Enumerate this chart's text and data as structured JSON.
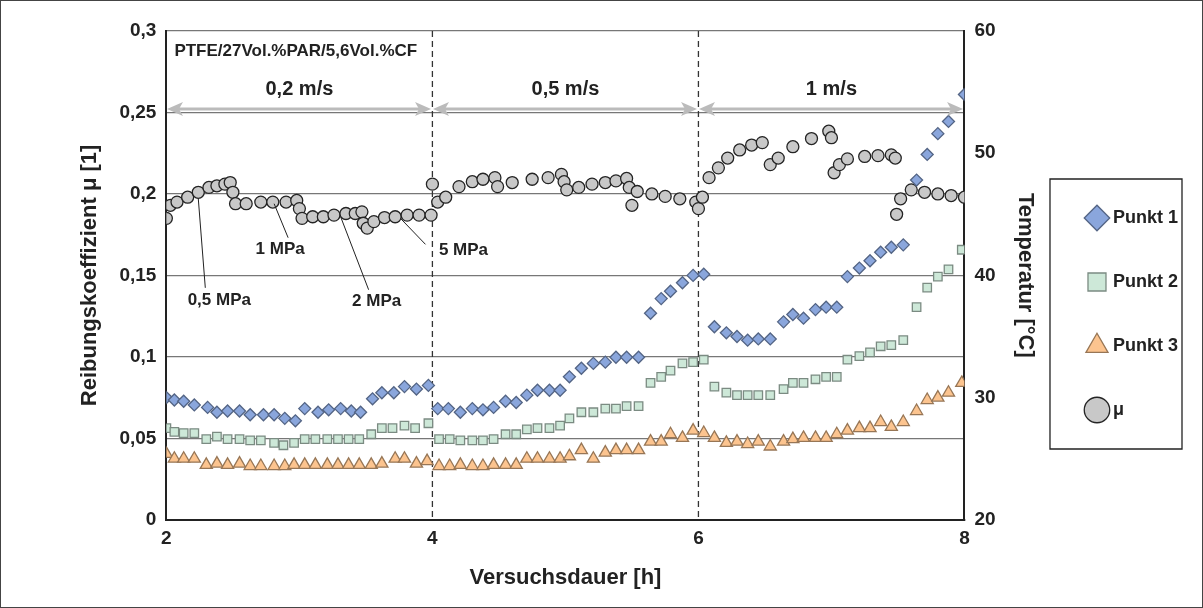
{
  "chart_data": {
    "type": "scatter",
    "xlabel": "Versuchsdauer [h]",
    "ylabel": "Reibungskoeffizient μ [1]",
    "y2label": "Temperatur [°C]",
    "xlim": [
      2,
      8
    ],
    "xticks": [
      2,
      4,
      6,
      8
    ],
    "ylim": [
      0,
      0.3
    ],
    "yticks": [
      0,
      {
        "value": 0.05,
        "label": "0,05"
      },
      {
        "value": 0.1,
        "label": "0,1"
      },
      {
        "value": 0.15,
        "label": "0,15"
      },
      {
        "value": 0.2,
        "label": "0,2"
      },
      {
        "value": 0.25,
        "label": "0,25"
      },
      {
        "value": 0.3,
        "label": "0,3"
      }
    ],
    "y2lim": [
      20,
      60
    ],
    "y2ticks": [
      20,
      30,
      40,
      50,
      60
    ],
    "grid": "y",
    "legend": "right",
    "ref_lines": [
      {
        "axis": "x",
        "value": 4,
        "line_style": "dashed",
        "color": "#333333"
      },
      {
        "axis": "x",
        "value": 6,
        "line_style": "dashed",
        "color": "#333333"
      }
    ],
    "annotations": [
      "PTFE/27Vol.%PAR/5,6Vol.%CF",
      "0,2 m/s",
      "0,5 m/s",
      "1 m/s",
      {
        "text": "0,5 MPa",
        "x": 2.24,
        "y": 0.197
      },
      {
        "text": "1 MPa",
        "x": 2.81,
        "y": 0.194
      },
      {
        "text": "2 MPa",
        "x": 3.31,
        "y": 0.186
      },
      {
        "text": "5 MPa",
        "x": 3.76,
        "y": 0.185
      }
    ],
    "series": [
      {
        "name": "Punkt 1",
        "color": "#8aa6dc",
        "marker": "diamond",
        "axis": "y2",
        "x": [
          2.0,
          2.06,
          2.13,
          2.21,
          2.31,
          2.38,
          2.46,
          2.55,
          2.63,
          2.73,
          2.81,
          2.89,
          2.97,
          3.04,
          3.14,
          3.22,
          3.31,
          3.39,
          3.46,
          3.55,
          3.62,
          3.71,
          3.79,
          3.88,
          3.97,
          4.04,
          4.12,
          4.21,
          4.3,
          4.38,
          4.46,
          4.55,
          4.63,
          4.71,
          4.79,
          4.88,
          4.96,
          5.03,
          5.12,
          5.21,
          5.3,
          5.38,
          5.46,
          5.55,
          5.64,
          5.72,
          5.79,
          5.88,
          5.96,
          6.04,
          6.12,
          6.21,
          6.29,
          6.37,
          6.45,
          6.54,
          6.64,
          6.71,
          6.79,
          6.88,
          6.96,
          7.04,
          7.12,
          7.21,
          7.29,
          7.37,
          7.45,
          7.54,
          7.64,
          7.72,
          7.8,
          7.88,
          8.0
        ],
        "values": [
          30.0,
          29.8,
          29.7,
          29.4,
          29.2,
          28.8,
          28.9,
          28.9,
          28.6,
          28.6,
          28.6,
          28.3,
          28.1,
          29.1,
          28.8,
          29.0,
          29.1,
          28.9,
          28.8,
          29.9,
          30.4,
          30.4,
          30.9,
          30.7,
          31.0,
          29.1,
          29.1,
          28.8,
          29.1,
          29.0,
          29.2,
          29.7,
          29.6,
          30.2,
          30.6,
          30.6,
          30.6,
          31.7,
          32.4,
          32.8,
          32.9,
          33.3,
          33.3,
          33.3,
          36.9,
          38.1,
          38.7,
          39.4,
          40.0,
          40.1,
          35.8,
          35.3,
          35.0,
          34.7,
          34.8,
          34.8,
          36.2,
          36.8,
          36.5,
          37.2,
          37.4,
          37.4,
          39.9,
          40.6,
          41.2,
          41.9,
          42.3,
          42.5,
          47.8,
          49.9,
          51.6,
          52.6,
          54.8
        ]
      },
      {
        "name": "Punkt 2",
        "color": "#cde8d8",
        "marker": "square",
        "axis": "y2",
        "x": [
          2.0,
          2.06,
          2.13,
          2.21,
          2.3,
          2.38,
          2.46,
          2.55,
          2.63,
          2.71,
          2.81,
          2.88,
          2.96,
          3.04,
          3.12,
          3.21,
          3.29,
          3.37,
          3.45,
          3.54,
          3.62,
          3.7,
          3.79,
          3.87,
          3.97,
          4.05,
          4.13,
          4.21,
          4.3,
          4.38,
          4.46,
          4.55,
          4.63,
          4.71,
          4.79,
          4.88,
          4.96,
          5.03,
          5.12,
          5.21,
          5.3,
          5.38,
          5.46,
          5.55,
          5.64,
          5.72,
          5.79,
          5.88,
          5.96,
          6.04,
          6.12,
          6.21,
          6.29,
          6.37,
          6.45,
          6.54,
          6.64,
          6.71,
          6.79,
          6.88,
          6.96,
          7.04,
          7.12,
          7.21,
          7.29,
          7.37,
          7.45,
          7.54,
          7.64,
          7.72,
          7.8,
          7.88,
          7.98
        ],
        "values": [
          27.5,
          27.2,
          27.1,
          27.1,
          26.6,
          26.8,
          26.6,
          26.6,
          26.5,
          26.5,
          26.3,
          26.1,
          26.3,
          26.6,
          26.6,
          26.6,
          26.6,
          26.6,
          26.6,
          27.0,
          27.5,
          27.5,
          27.7,
          27.5,
          27.9,
          26.6,
          26.6,
          26.5,
          26.5,
          26.5,
          26.6,
          27.0,
          27.0,
          27.4,
          27.5,
          27.5,
          27.7,
          28.3,
          28.8,
          28.8,
          29.1,
          29.1,
          29.3,
          29.3,
          31.2,
          31.7,
          32.2,
          32.8,
          32.9,
          33.1,
          30.9,
          30.4,
          30.2,
          30.2,
          30.2,
          30.2,
          30.7,
          31.2,
          31.2,
          31.5,
          31.7,
          31.7,
          33.1,
          33.4,
          33.7,
          34.2,
          34.3,
          34.7,
          37.4,
          39.0,
          39.9,
          40.5,
          42.1
        ]
      },
      {
        "name": "Punkt 3",
        "color": "#fcc48f",
        "marker": "triangle",
        "axis": "y2",
        "x": [
          2.0,
          2.06,
          2.13,
          2.21,
          2.3,
          2.38,
          2.46,
          2.55,
          2.63,
          2.71,
          2.81,
          2.89,
          2.96,
          3.04,
          3.12,
          3.21,
          3.29,
          3.37,
          3.45,
          3.54,
          3.62,
          3.72,
          3.79,
          3.88,
          3.96,
          4.05,
          4.13,
          4.21,
          4.3,
          4.38,
          4.46,
          4.55,
          4.63,
          4.71,
          4.79,
          4.88,
          4.96,
          5.03,
          5.12,
          5.21,
          5.3,
          5.38,
          5.46,
          5.55,
          5.64,
          5.72,
          5.79,
          5.88,
          5.96,
          6.04,
          6.12,
          6.21,
          6.29,
          6.37,
          6.45,
          6.54,
          6.64,
          6.71,
          6.79,
          6.88,
          6.96,
          7.04,
          7.12,
          7.21,
          7.29,
          7.37,
          7.45,
          7.54,
          7.64,
          7.72,
          7.8,
          7.88,
          7.98
        ],
        "values": [
          25.4,
          25.0,
          25.0,
          25.0,
          24.5,
          24.6,
          24.5,
          24.6,
          24.4,
          24.4,
          24.4,
          24.4,
          24.5,
          24.5,
          24.5,
          24.5,
          24.5,
          24.5,
          24.5,
          24.5,
          24.6,
          25.0,
          25.0,
          24.6,
          24.8,
          24.4,
          24.4,
          24.5,
          24.4,
          24.4,
          24.5,
          24.5,
          24.5,
          25.0,
          25.0,
          25.0,
          25.0,
          25.2,
          25.7,
          25.0,
          25.5,
          25.7,
          25.7,
          25.7,
          26.4,
          26.4,
          27.0,
          26.7,
          27.3,
          27.1,
          26.7,
          26.3,
          26.4,
          26.2,
          26.4,
          26.0,
          26.4,
          26.6,
          26.7,
          26.7,
          26.7,
          27.0,
          27.3,
          27.5,
          27.5,
          28.0,
          27.6,
          28.0,
          28.9,
          29.8,
          30.0,
          30.4,
          31.2
        ]
      },
      {
        "name": "μ",
        "color": "#c8c8c8",
        "marker": "circle",
        "x": [
          2.0,
          2.03,
          2.08,
          2.16,
          2.24,
          2.32,
          2.38,
          2.44,
          2.48,
          2.5,
          2.52,
          2.6,
          2.71,
          2.8,
          2.9,
          2.98,
          3.0,
          3.02,
          3.1,
          3.18,
          3.26,
          3.35,
          3.42,
          3.47,
          3.48,
          3.51,
          3.56,
          3.64,
          3.72,
          3.81,
          3.9,
          3.99,
          4.0,
          4.04,
          4.1,
          4.2,
          4.3,
          4.38,
          4.47,
          4.49,
          4.6,
          4.75,
          4.87,
          4.97,
          4.99,
          5.01,
          5.1,
          5.2,
          5.3,
          5.38,
          5.46,
          5.48,
          5.5,
          5.54,
          5.65,
          5.75,
          5.86,
          5.98,
          6.0,
          6.03,
          6.08,
          6.15,
          6.22,
          6.31,
          6.4,
          6.48,
          6.54,
          6.6,
          6.71,
          6.85,
          6.98,
          7.0,
          7.02,
          7.06,
          7.12,
          7.25,
          7.35,
          7.45,
          7.48,
          7.49,
          7.52,
          7.6,
          7.7,
          7.8,
          7.9,
          8.0
        ],
        "values": [
          0.185,
          0.193,
          0.195,
          0.198,
          0.201,
          0.204,
          0.205,
          0.206,
          0.207,
          0.201,
          0.194,
          0.194,
          0.195,
          0.195,
          0.195,
          0.196,
          0.191,
          0.185,
          0.186,
          0.186,
          0.187,
          0.188,
          0.188,
          0.189,
          0.182,
          0.179,
          0.183,
          0.1855,
          0.186,
          0.187,
          0.187,
          0.187,
          0.206,
          0.195,
          0.198,
          0.2045,
          0.2075,
          0.209,
          0.21,
          0.2045,
          0.207,
          0.209,
          0.21,
          0.212,
          0.2075,
          0.2025,
          0.204,
          0.206,
          0.207,
          0.208,
          0.2095,
          0.204,
          0.193,
          0.2015,
          0.2,
          0.1985,
          0.197,
          0.195,
          0.191,
          0.198,
          0.21,
          0.216,
          0.222,
          0.227,
          0.23,
          0.2315,
          0.218,
          0.222,
          0.229,
          0.234,
          0.2385,
          0.2345,
          0.213,
          0.218,
          0.2215,
          0.223,
          0.2235,
          0.224,
          0.222,
          0.1875,
          0.197,
          0.2025,
          0.201,
          0.2,
          0.199,
          0.198
        ]
      }
    ]
  }
}
